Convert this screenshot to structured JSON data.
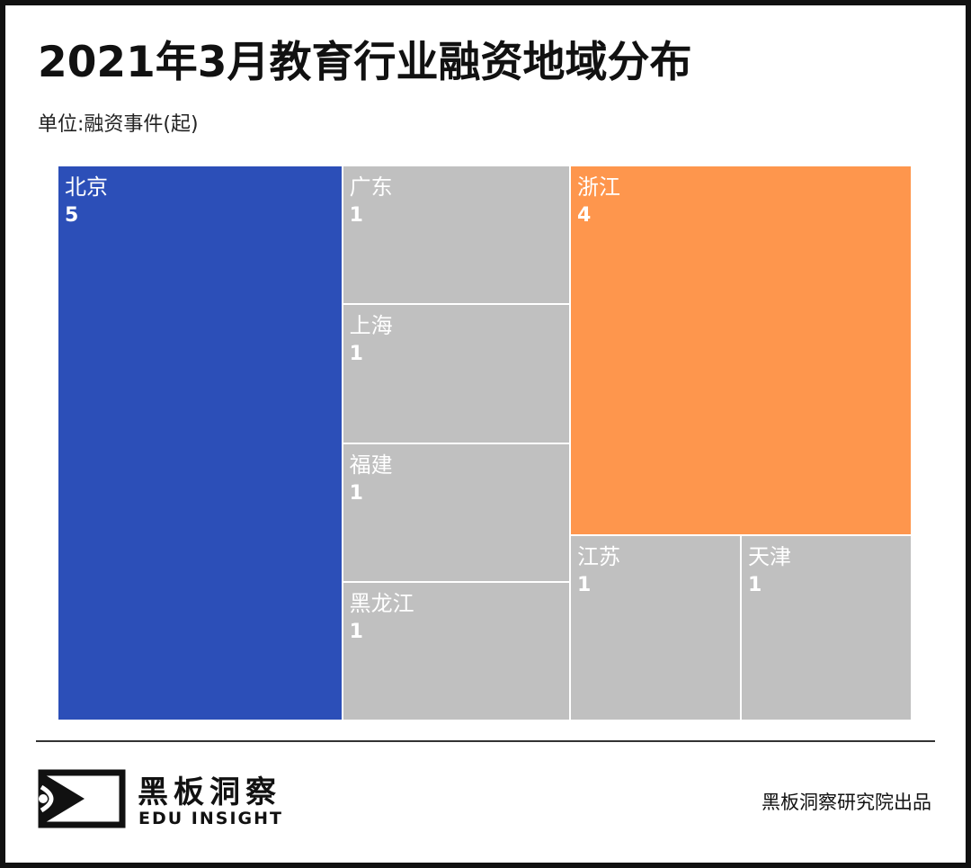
{
  "header": {
    "title": "2021年3月教育行业融资地域分布",
    "unit": "单位:融资事件(起)"
  },
  "chart_data": {
    "type": "treemap",
    "title": "2021年3月教育行业融资地域分布",
    "unit_label": "单位:融资事件(起)",
    "items": [
      {
        "label": "北京",
        "value": 5,
        "color": "#2c4fb8"
      },
      {
        "label": "广东",
        "value": 1,
        "color": "#c0c0c0"
      },
      {
        "label": "上海",
        "value": 1,
        "color": "#c0c0c0"
      },
      {
        "label": "福建",
        "value": 1,
        "color": "#c0c0c0"
      },
      {
        "label": "黑龙江",
        "value": 1,
        "color": "#c0c0c0"
      },
      {
        "label": "浙江",
        "value": 4,
        "color": "#fe964d"
      },
      {
        "label": "江苏",
        "value": 1,
        "color": "#c0c0c0"
      },
      {
        "label": "天津",
        "value": 1,
        "color": "#c0c0c0"
      }
    ]
  },
  "footer": {
    "logo_cn": "黑板洞察",
    "logo_en": "EDU INSIGHT",
    "credit": "黑板洞察研究院出品"
  }
}
